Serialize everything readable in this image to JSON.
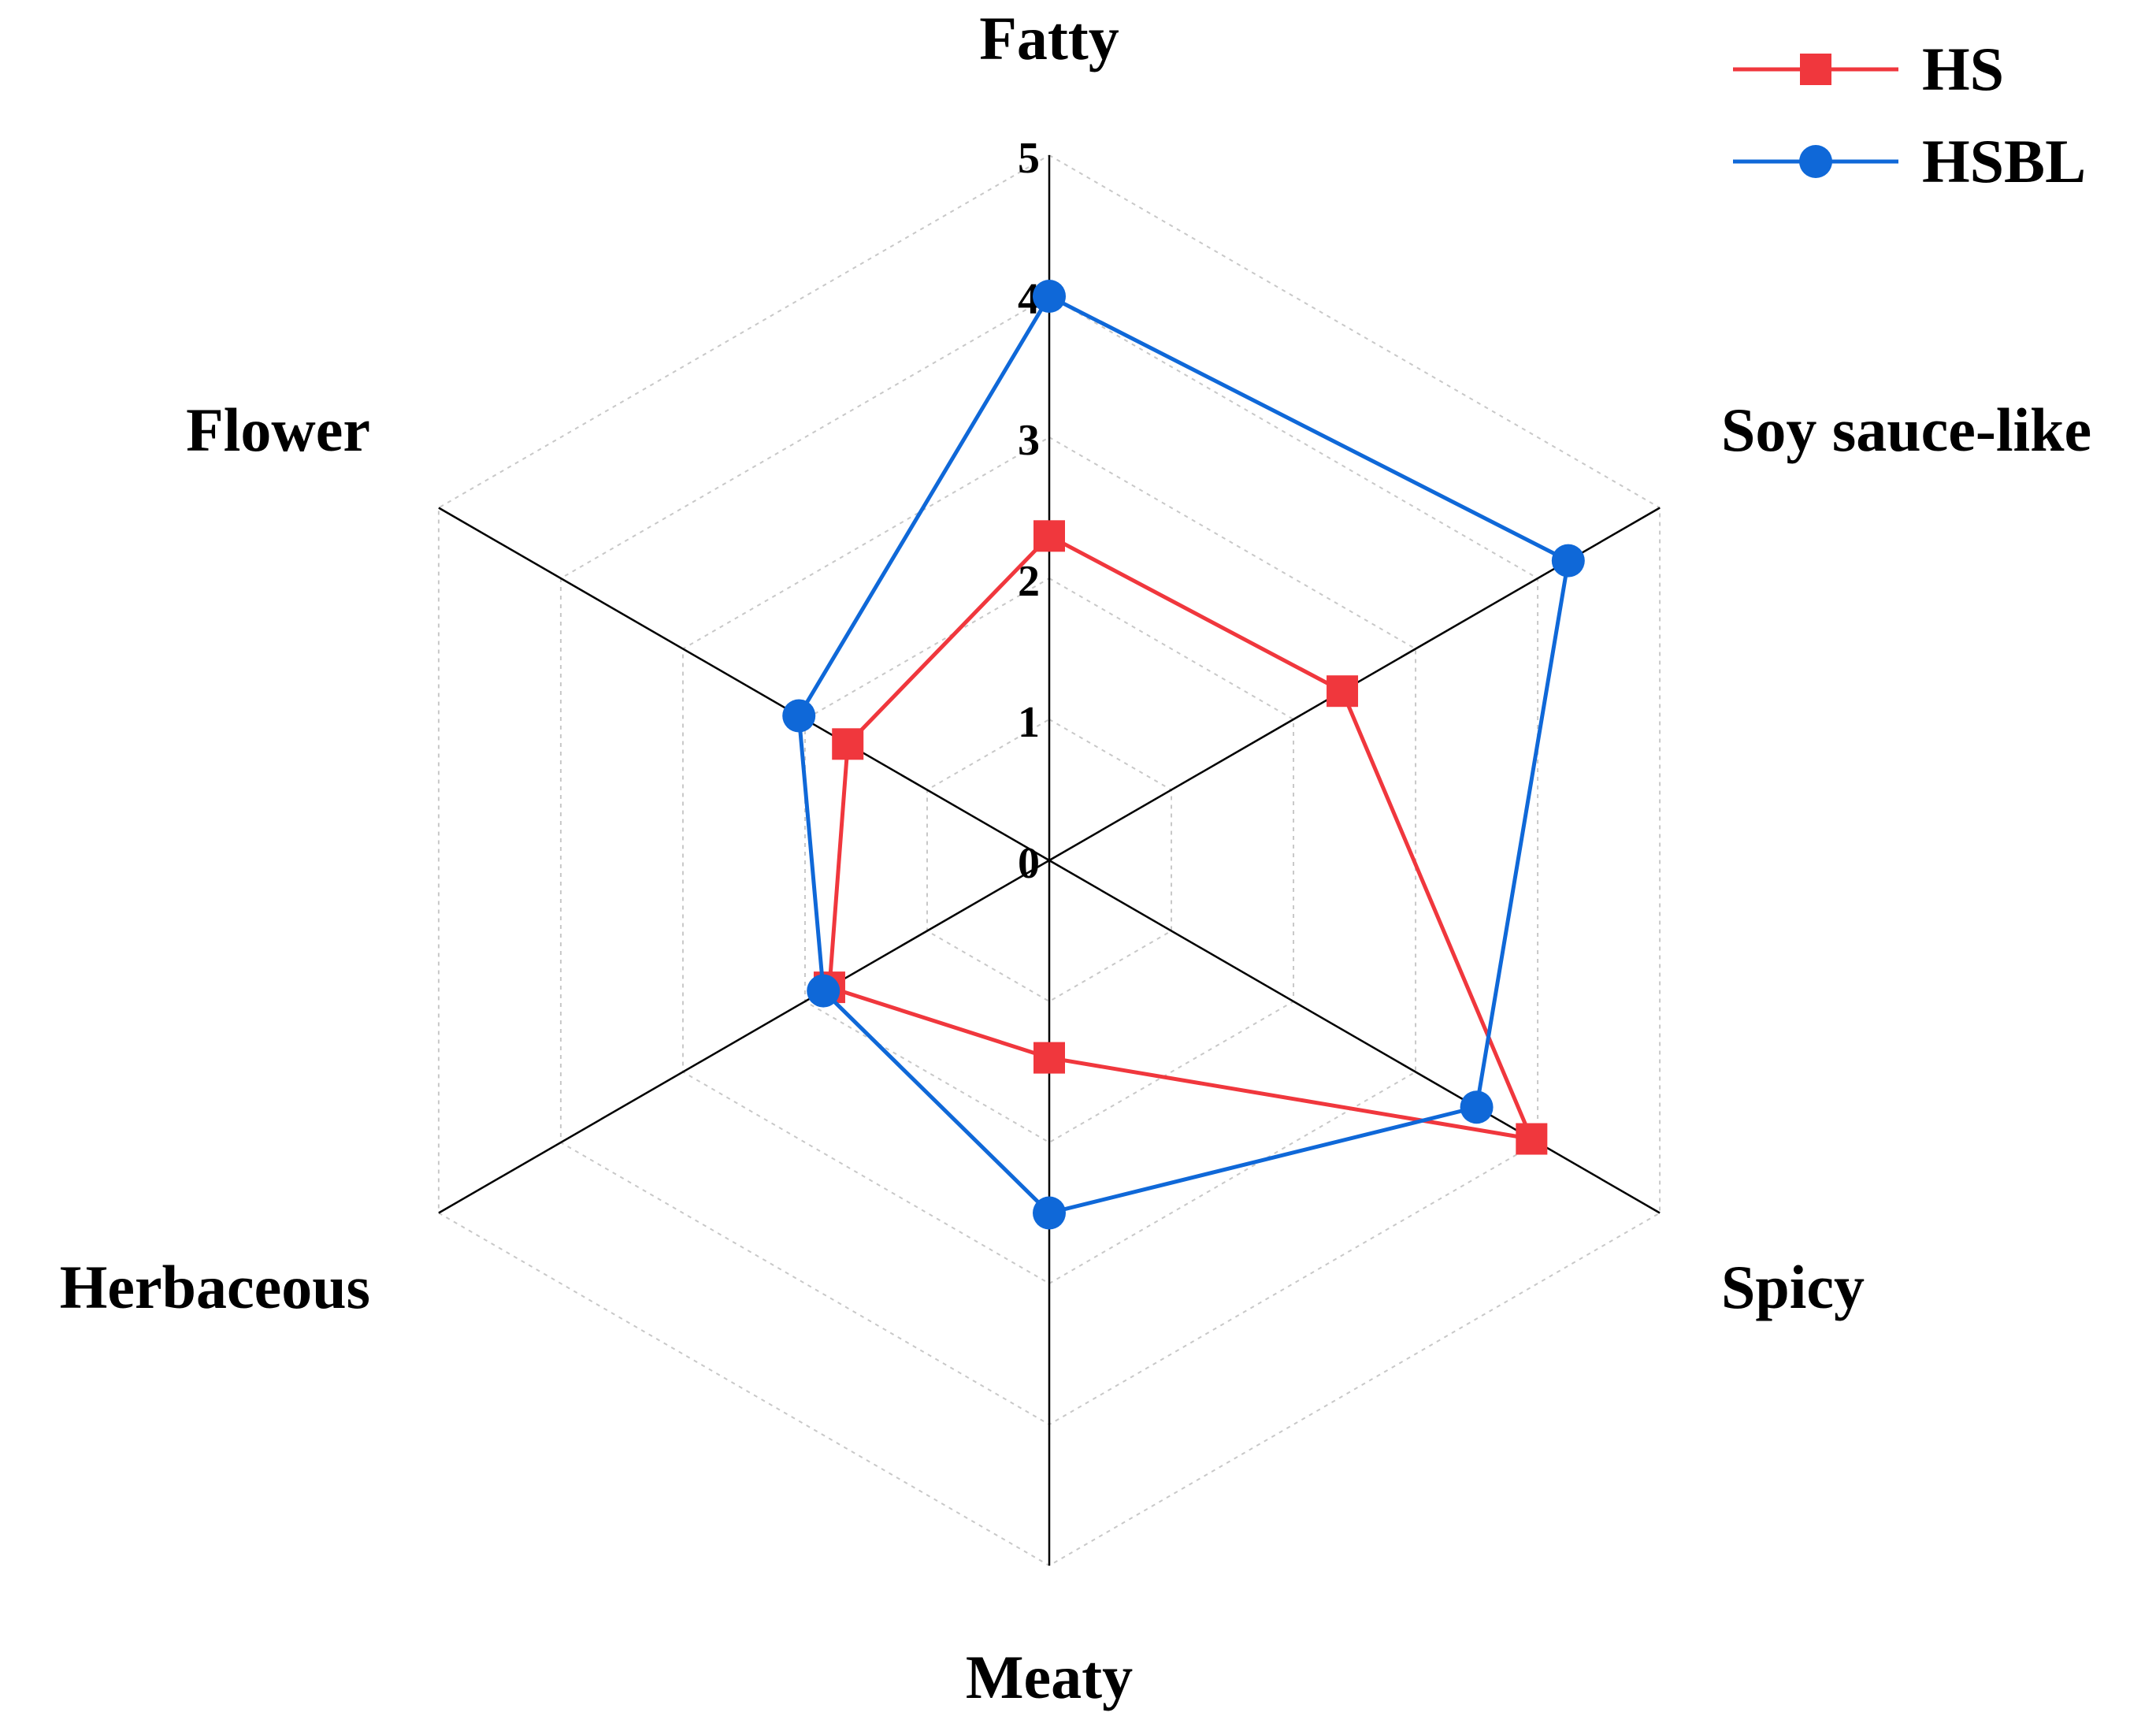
{
  "chart_data": {
    "type": "radar",
    "axes": [
      "Fatty",
      "Soy sauce-like",
      "Spicy",
      "Meaty",
      "Herbaceous",
      "Flower"
    ],
    "rlim": [
      0,
      5
    ],
    "ticks": [
      "0",
      "1",
      "2",
      "3",
      "4",
      "5"
    ],
    "grid": true,
    "legend_position": "top-right",
    "series": [
      {
        "name": "HS",
        "color": "#f0373d",
        "marker": "square",
        "values": [
          2.3,
          2.4,
          3.95,
          1.4,
          1.8,
          1.65
        ]
      },
      {
        "name": "HSBL",
        "color": "#0f68d8",
        "marker": "circle",
        "values": [
          4.0,
          4.25,
          3.5,
          2.5,
          1.85,
          2.05
        ]
      }
    ]
  }
}
